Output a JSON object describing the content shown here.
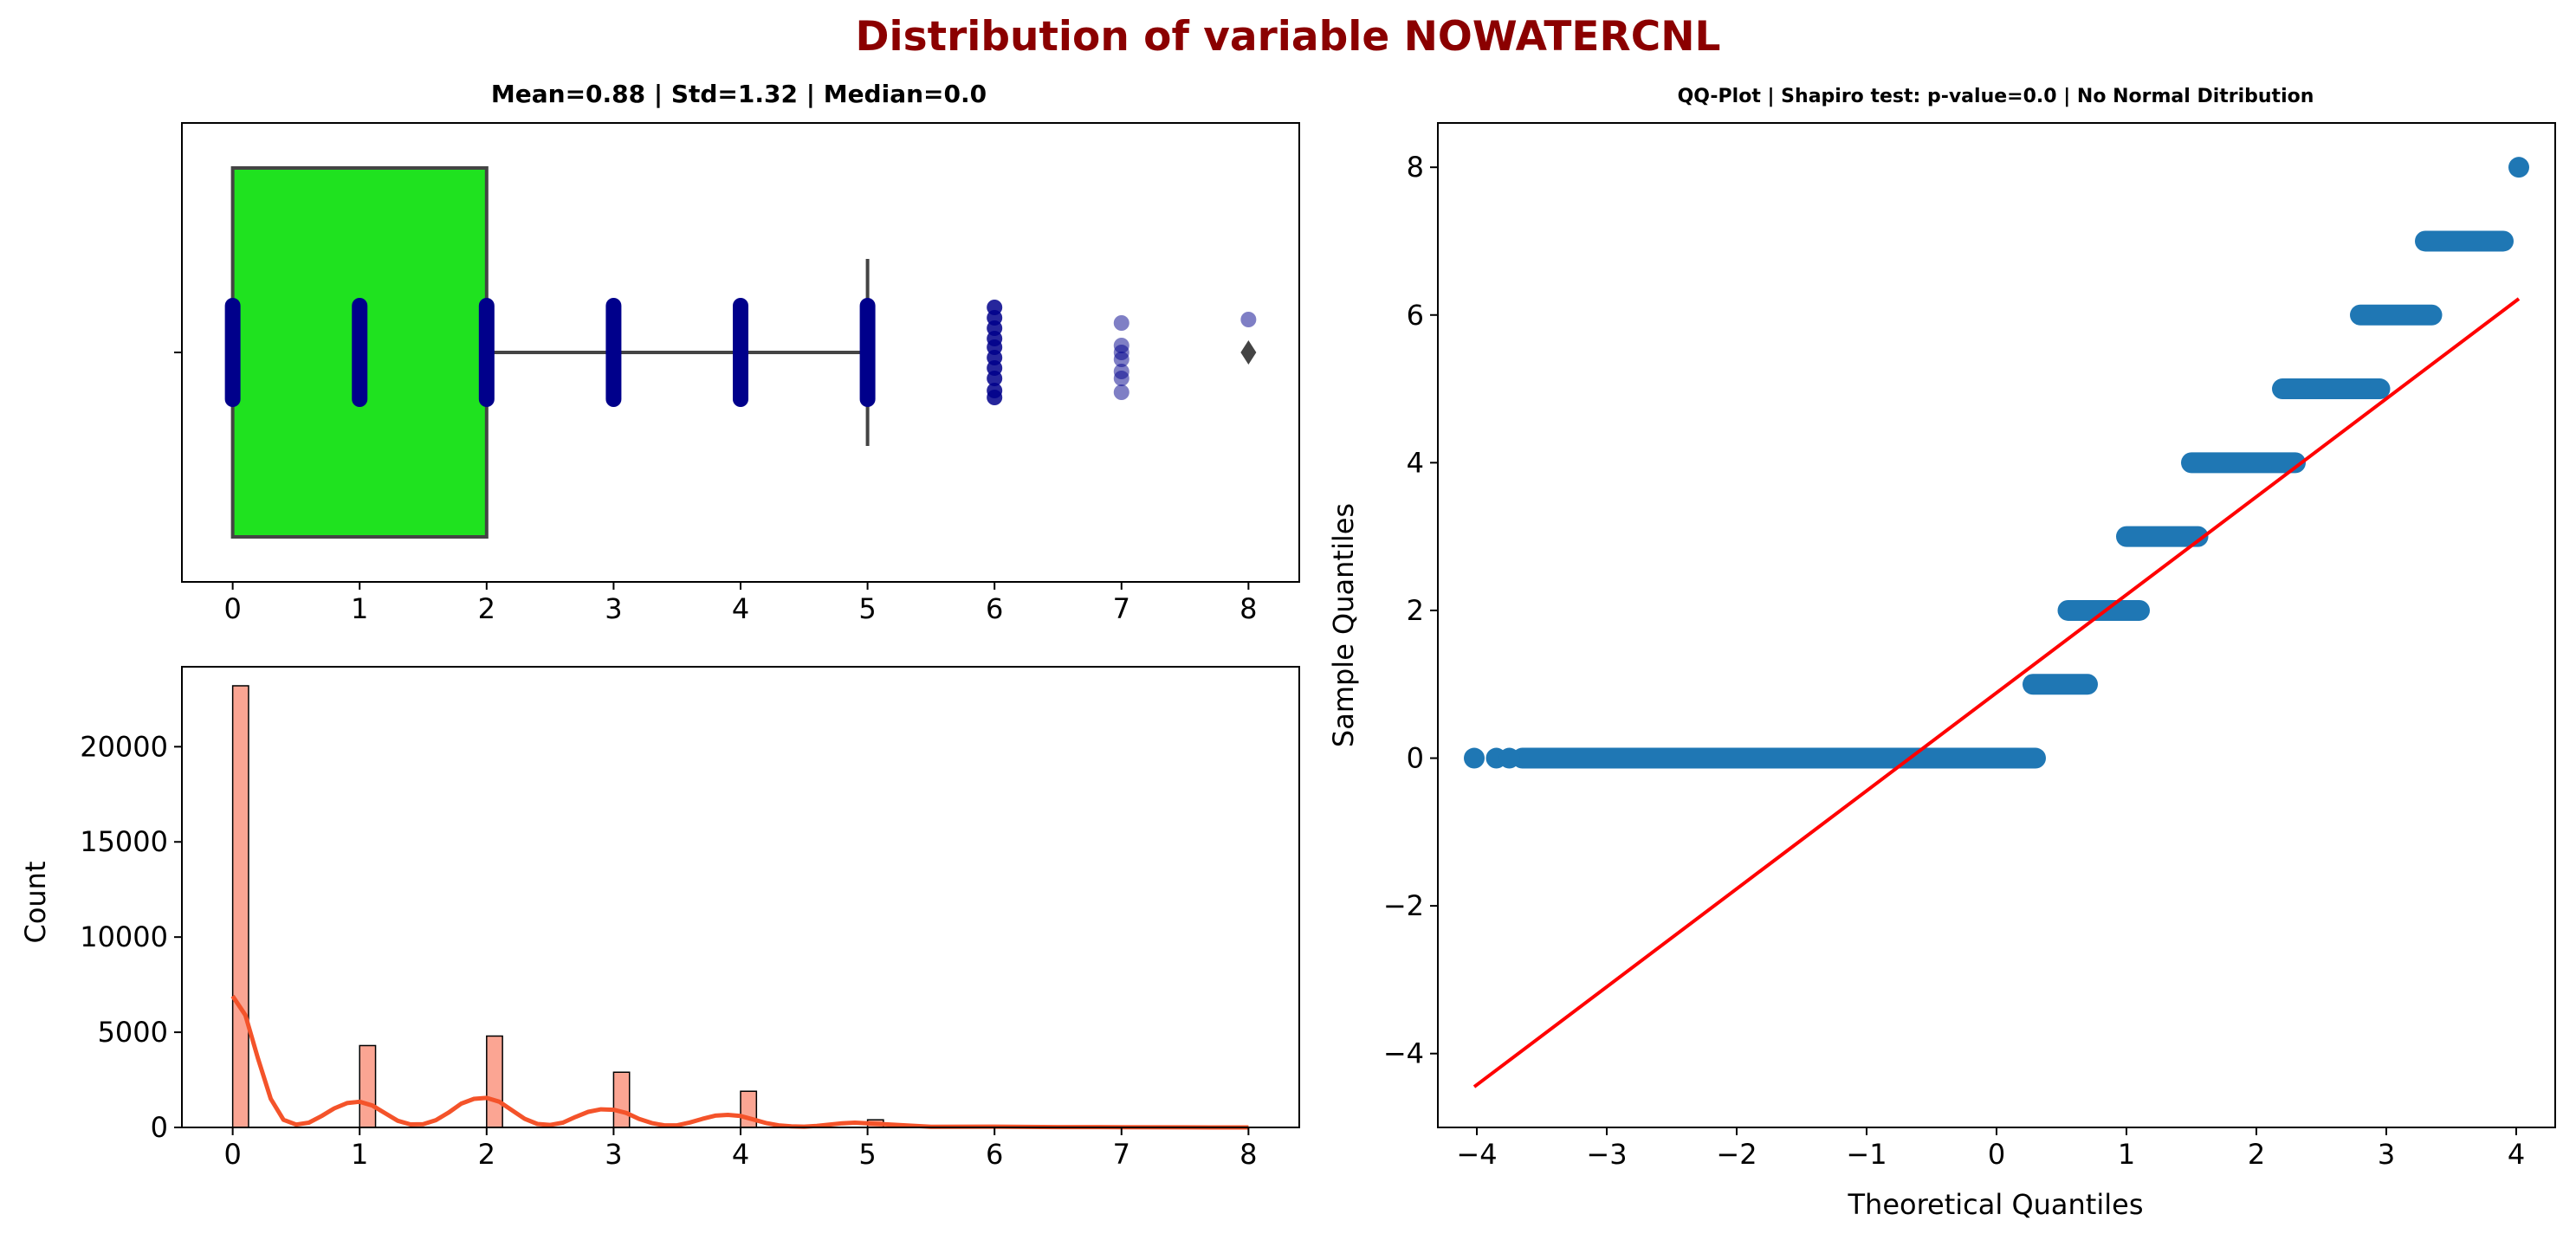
{
  "figure": {
    "suptitle": "Distribution of variable NOWATERCNL",
    "suptitle_color": "#8b0000"
  },
  "chart_data": [
    {
      "type": "box",
      "title": "Mean=0.88 | Std=1.32 | Median=0.0",
      "xlabel": "",
      "ylabel": "",
      "xlim": [
        -0.4,
        8.4
      ],
      "xticks": [
        "0",
        "1",
        "2",
        "3",
        "4",
        "5",
        "6",
        "7",
        "8"
      ],
      "box": {
        "q1": 0,
        "median": 0,
        "q3": 2,
        "whisker_low": 0,
        "whisker_high": 5
      },
      "outliers": [
        8
      ],
      "box_color": "#1fe21f",
      "strip_color": "#00008b",
      "strip_values": [
        0,
        1,
        2,
        3,
        4,
        5,
        6,
        7,
        8
      ]
    },
    {
      "type": "bar",
      "title": "",
      "xlabel": "",
      "ylabel": "Count",
      "xlim": [
        -0.4,
        8.4
      ],
      "ylim": [
        0,
        24200
      ],
      "xticks": [
        "0",
        "1",
        "2",
        "3",
        "4",
        "5",
        "6",
        "7",
        "8"
      ],
      "yticks": [
        "0",
        "5000",
        "10000",
        "15000",
        "20000"
      ],
      "categories": [
        "0",
        "1",
        "2",
        "3",
        "4",
        "5",
        "6",
        "7",
        "8"
      ],
      "values": [
        23200,
        4300,
        4800,
        2900,
        1900,
        400,
        60,
        20,
        5
      ],
      "bar_color": "#fba593",
      "kde_color": "#f4532a",
      "kde_x": [
        0,
        0.1,
        0.2,
        0.3,
        0.4,
        0.5,
        0.6,
        0.7,
        0.8,
        0.9,
        1.0,
        1.1,
        1.2,
        1.3,
        1.4,
        1.5,
        1.6,
        1.7,
        1.8,
        1.9,
        2.0,
        2.1,
        2.2,
        2.3,
        2.4,
        2.5,
        2.6,
        2.7,
        2.8,
        2.9,
        3.0,
        3.1,
        3.2,
        3.3,
        3.4,
        3.5,
        3.6,
        3.7,
        3.8,
        3.9,
        4.0,
        4.1,
        4.2,
        4.3,
        4.4,
        4.5,
        4.6,
        4.7,
        4.8,
        4.9,
        5.0,
        5.5,
        6.0,
        6.5,
        7.0,
        7.5,
        8.0
      ],
      "kde_y": [
        6900,
        5900,
        3600,
        1500,
        400,
        150,
        250,
        600,
        1000,
        1280,
        1350,
        1150,
        750,
        350,
        160,
        170,
        380,
        780,
        1250,
        1500,
        1550,
        1350,
        900,
        450,
        180,
        130,
        250,
        550,
        820,
        950,
        930,
        760,
        450,
        230,
        110,
        110,
        260,
        450,
        620,
        660,
        600,
        420,
        230,
        110,
        60,
        40,
        80,
        150,
        220,
        250,
        220,
        30,
        40,
        20,
        15,
        5,
        0
      ]
    },
    {
      "type": "scatter",
      "title": "QQ-Plot | Shapiro test: p-value=0.0 | No Normal Ditribution",
      "xlabel": "Theoretical Quantiles",
      "ylabel": "Sample Quantiles",
      "xlim": [
        -4.3,
        4.3
      ],
      "ylim": [
        -5.0,
        8.6
      ],
      "xticks": [
        "−4",
        "−3",
        "−2",
        "−1",
        "0",
        "1",
        "2",
        "3",
        "4"
      ],
      "yticks": [
        "−4",
        "−2",
        "0",
        "2",
        "4",
        "6",
        "8"
      ],
      "point_color": "#1f77b4",
      "line_color": "#ff0000",
      "segments": [
        {
          "y": 0,
          "x_from": -3.65,
          "x_to": 0.3
        },
        {
          "y": 1,
          "x_from": 0.28,
          "x_to": 0.7
        },
        {
          "y": 2,
          "x_from": 0.55,
          "x_to": 1.1
        },
        {
          "y": 3,
          "x_from": 1.0,
          "x_to": 1.55
        },
        {
          "y": 4,
          "x_from": 1.5,
          "x_to": 2.3
        },
        {
          "y": 5,
          "x_from": 2.2,
          "x_to": 2.95
        },
        {
          "y": 6,
          "x_from": 2.8,
          "x_to": 3.35
        },
        {
          "y": 7,
          "x_from": 3.3,
          "x_to": 3.9
        }
      ],
      "points": [
        {
          "x": -4.02,
          "y": 0
        },
        {
          "x": -3.85,
          "y": 0
        },
        {
          "x": -3.75,
          "y": 0
        },
        {
          "x": 4.02,
          "y": 8
        }
      ],
      "fit_line": {
        "x": [
          -4.02,
          4.02
        ],
        "y": [
          -4.45,
          6.22
        ]
      }
    }
  ]
}
